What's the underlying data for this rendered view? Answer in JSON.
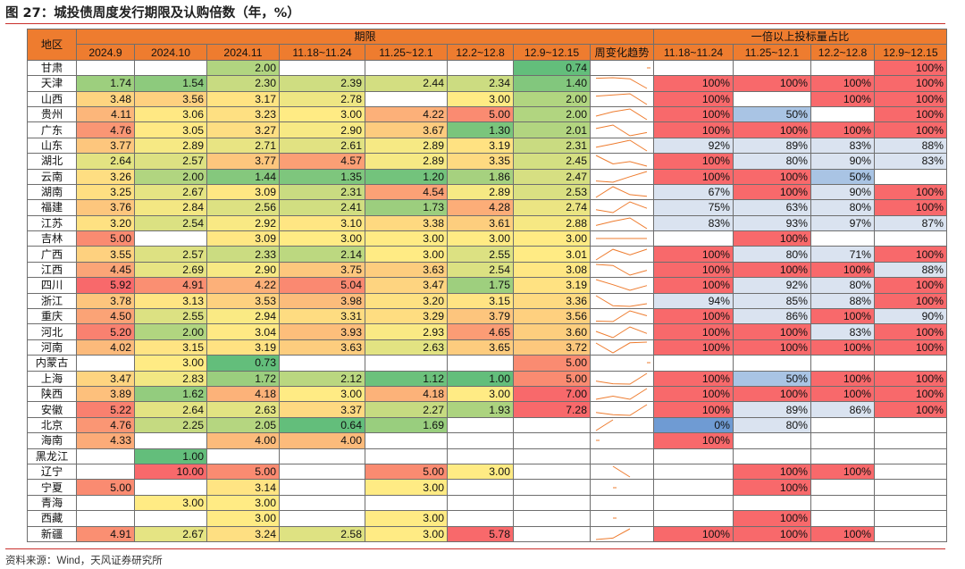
{
  "title": "图 27：城投债周度发行期限及认购倍数（年，%）",
  "source": "资料来源：Wind，天风证券研究所",
  "header": {
    "region": "地区",
    "term_group": "期限",
    "ratio_group": "一倍以上投标量占比",
    "term_columns": [
      "2024.9",
      "2024.10",
      "2024.11",
      "11.18~11.24",
      "11.25~12.1",
      "12.2~12.8",
      "12.9~12.15"
    ],
    "trend": "周变化趋势",
    "ratio_columns": [
      "11.18~11.24",
      "11.25~12.1",
      "12.2~12.8",
      "12.9~12.15"
    ]
  },
  "colors": {
    "header": "#ee7c2f",
    "red": "#f8696b",
    "lightblue": "#dae3f0",
    "blue": "#a9c4e4",
    "midblue": "#6f9bd3",
    "term_scale": [
      "#63be7b",
      "#ffeb84",
      "#f8696b"
    ]
  },
  "rows": [
    {
      "region": "甘肃",
      "terms": [
        "",
        "",
        "2.00",
        "",
        "",
        "",
        "0.74"
      ],
      "ratios": [
        "",
        "",
        "",
        "100%"
      ]
    },
    {
      "region": "天津",
      "terms": [
        "1.74",
        "1.54",
        "2.30",
        "2.39",
        "2.44",
        "2.34",
        "1.40"
      ],
      "ratios": [
        "100%",
        "100%",
        "100%",
        "100%"
      ]
    },
    {
      "region": "山西",
      "terms": [
        "3.48",
        "3.56",
        "3.17",
        "2.78",
        "",
        "3.00",
        "2.00"
      ],
      "ratios": [
        "100%",
        "",
        "100%",
        "100%"
      ]
    },
    {
      "region": "贵州",
      "terms": [
        "4.11",
        "3.06",
        "3.23",
        "3.00",
        "4.22",
        "5.00",
        "2.00"
      ],
      "ratios": [
        "100%",
        "50%",
        "",
        "100%"
      ]
    },
    {
      "region": "广东",
      "terms": [
        "4.76",
        "3.05",
        "3.27",
        "2.90",
        "3.67",
        "1.30",
        "2.01"
      ],
      "ratios": [
        "100%",
        "100%",
        "100%",
        "100%"
      ]
    },
    {
      "region": "山东",
      "terms": [
        "3.77",
        "2.89",
        "2.71",
        "2.61",
        "2.89",
        "3.19",
        "2.31"
      ],
      "ratios": [
        "92%",
        "89%",
        "83%",
        "88%"
      ]
    },
    {
      "region": "湖北",
      "terms": [
        "2.64",
        "2.57",
        "3.77",
        "4.57",
        "2.89",
        "3.35",
        "2.45"
      ],
      "ratios": [
        "100%",
        "80%",
        "90%",
        "83%"
      ]
    },
    {
      "region": "云南",
      "terms": [
        "3.26",
        "2.00",
        "1.44",
        "1.35",
        "1.20",
        "1.86",
        "2.47"
      ],
      "ratios": [
        "100%",
        "100%",
        "50%",
        ""
      ]
    },
    {
      "region": "湖南",
      "terms": [
        "3.25",
        "2.67",
        "3.09",
        "2.31",
        "4.54",
        "2.89",
        "2.53"
      ],
      "ratios": [
        "67%",
        "100%",
        "90%",
        "100%"
      ]
    },
    {
      "region": "福建",
      "terms": [
        "3.76",
        "2.84",
        "2.56",
        "2.41",
        "1.73",
        "4.28",
        "2.74"
      ],
      "ratios": [
        "75%",
        "63%",
        "80%",
        "100%"
      ]
    },
    {
      "region": "江苏",
      "terms": [
        "3.20",
        "2.54",
        "2.92",
        "3.10",
        "3.38",
        "3.61",
        "2.88"
      ],
      "ratios": [
        "83%",
        "93%",
        "97%",
        "87%"
      ]
    },
    {
      "region": "吉林",
      "terms": [
        "5.00",
        "",
        "3.09",
        "3.00",
        "3.00",
        "3.00",
        "3.00"
      ],
      "ratios": [
        "",
        "100%",
        "",
        ""
      ]
    },
    {
      "region": "广西",
      "terms": [
        "3.55",
        "2.57",
        "2.33",
        "2.14",
        "3.00",
        "2.55",
        "3.01"
      ],
      "ratios": [
        "100%",
        "80%",
        "71%",
        "100%"
      ]
    },
    {
      "region": "江西",
      "terms": [
        "4.45",
        "2.69",
        "2.90",
        "3.75",
        "3.63",
        "2.54",
        "3.08"
      ],
      "ratios": [
        "100%",
        "100%",
        "100%",
        "88%"
      ]
    },
    {
      "region": "四川",
      "terms": [
        "5.92",
        "4.91",
        "4.22",
        "5.04",
        "3.47",
        "1.75",
        "3.19"
      ],
      "ratios": [
        "100%",
        "92%",
        "80%",
        "100%"
      ]
    },
    {
      "region": "浙江",
      "terms": [
        "3.78",
        "3.13",
        "3.53",
        "3.98",
        "3.20",
        "3.15",
        "3.36"
      ],
      "ratios": [
        "94%",
        "85%",
        "88%",
        "100%"
      ]
    },
    {
      "region": "重庆",
      "terms": [
        "4.50",
        "2.55",
        "2.94",
        "3.31",
        "3.29",
        "3.79",
        "3.56"
      ],
      "ratios": [
        "100%",
        "86%",
        "100%",
        "90%"
      ]
    },
    {
      "region": "河北",
      "terms": [
        "5.20",
        "2.00",
        "3.04",
        "3.93",
        "2.93",
        "4.65",
        "3.60"
      ],
      "ratios": [
        "100%",
        "100%",
        "83%",
        "100%"
      ]
    },
    {
      "region": "河南",
      "terms": [
        "4.02",
        "3.15",
        "3.19",
        "3.63",
        "2.63",
        "3.65",
        "3.72"
      ],
      "ratios": [
        "100%",
        "100%",
        "100%",
        "100%"
      ]
    },
    {
      "region": "内蒙古",
      "terms": [
        "",
        "3.00",
        "0.73",
        "",
        "",
        "",
        "5.00"
      ],
      "ratios": [
        "",
        "",
        "",
        ""
      ]
    },
    {
      "region": "上海",
      "terms": [
        "3.47",
        "2.83",
        "1.72",
        "2.12",
        "1.12",
        "1.00",
        "5.00"
      ],
      "ratios": [
        "100%",
        "50%",
        "100%",
        "100%"
      ]
    },
    {
      "region": "陕西",
      "terms": [
        "3.89",
        "1.62",
        "4.18",
        "3.00",
        "4.18",
        "3.00",
        "7.00"
      ],
      "ratios": [
        "100%",
        "100%",
        "100%",
        "100%"
      ]
    },
    {
      "region": "安徽",
      "terms": [
        "5.22",
        "2.64",
        "2.63",
        "3.37",
        "2.27",
        "1.93",
        "7.28"
      ],
      "ratios": [
        "100%",
        "89%",
        "86%",
        "100%"
      ]
    },
    {
      "region": "北京",
      "terms": [
        "4.76",
        "2.25",
        "2.05",
        "0.64",
        "1.69",
        "",
        ""
      ],
      "ratios": [
        "0%",
        "80%",
        "",
        ""
      ]
    },
    {
      "region": "海南",
      "terms": [
        "4.33",
        "",
        "4.00",
        "4.00",
        "",
        "",
        ""
      ],
      "ratios": [
        "100%",
        "",
        "",
        ""
      ]
    },
    {
      "region": "黑龙江",
      "terms": [
        "",
        "1.00",
        "",
        "",
        "",
        "",
        ""
      ],
      "ratios": [
        "",
        "",
        "",
        ""
      ]
    },
    {
      "region": "辽宁",
      "terms": [
        "",
        "10.00",
        "5.00",
        "",
        "5.00",
        "3.00",
        ""
      ],
      "ratios": [
        "",
        "100%",
        "100%",
        ""
      ]
    },
    {
      "region": "宁夏",
      "terms": [
        "5.00",
        "",
        "3.14",
        "",
        "3.00",
        "",
        ""
      ],
      "ratios": [
        "",
        "100%",
        "",
        ""
      ]
    },
    {
      "region": "青海",
      "terms": [
        "",
        "3.00",
        "3.00",
        "",
        "",
        "",
        ""
      ],
      "ratios": [
        "",
        "",
        "",
        ""
      ]
    },
    {
      "region": "西藏",
      "terms": [
        "",
        "",
        "3.00",
        "",
        "3.00",
        "",
        ""
      ],
      "ratios": [
        "",
        "100%",
        "",
        ""
      ]
    },
    {
      "region": "新疆",
      "terms": [
        "4.91",
        "2.67",
        "3.24",
        "2.58",
        "3.00",
        "5.78",
        ""
      ],
      "ratios": [
        "100%",
        "100%",
        "100%",
        ""
      ]
    }
  ]
}
